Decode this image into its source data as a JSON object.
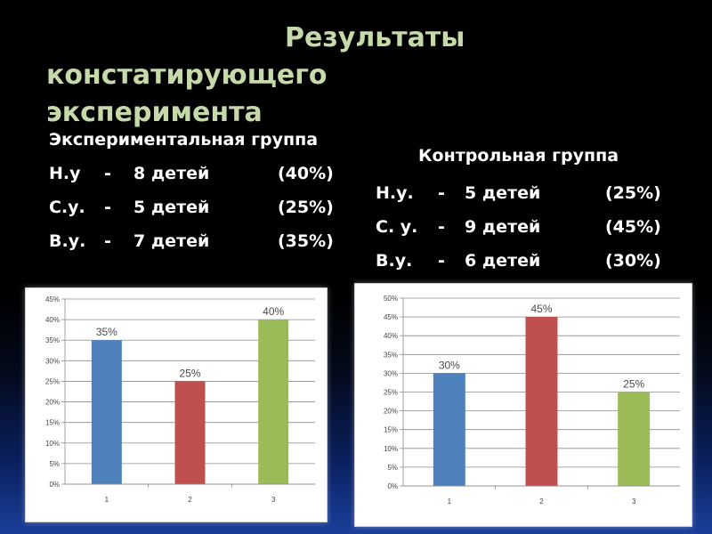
{
  "title": {
    "line1": "Результаты",
    "line2": "констатирующего",
    "line3": "эксперимента"
  },
  "experimental": {
    "name": "Экспериментальная группа",
    "rows": [
      {
        "label": "Н.у",
        "dash": "-",
        "count": "8 детей",
        "percent": "(40%)"
      },
      {
        "label": "С.у.",
        "dash": "-",
        "count": "5 детей",
        "percent": "(25%)"
      },
      {
        "label": "В.у.",
        "dash": "-",
        "count": "7  детей",
        "percent": "(35%)"
      }
    ]
  },
  "control": {
    "name": "Контрольная группа",
    "rows": [
      {
        "label": "Н.у.",
        "dash": "-",
        "count": "5 детей",
        "percent": "(25%)"
      },
      {
        "label": "С. у.",
        "dash": "-",
        "count": "9 детей",
        "percent": "(45%)"
      },
      {
        "label": "В.у.",
        "dash": "-",
        "count": "6 детей",
        "percent": "(30%)"
      }
    ]
  },
  "chart_data": [
    {
      "type": "bar",
      "categories": [
        "1",
        "2",
        "3"
      ],
      "values": [
        35,
        25,
        40
      ],
      "data_labels": [
        "35%",
        "25%",
        "40%"
      ],
      "colors": [
        "#4f81bd",
        "#c0504d",
        "#9bbb59"
      ],
      "ylim": [
        0,
        45
      ],
      "yticks": [
        0,
        5,
        10,
        15,
        20,
        25,
        30,
        35,
        40,
        45
      ],
      "ytick_labels": [
        "0%",
        "5%",
        "10%",
        "15%",
        "20%",
        "25%",
        "30%",
        "35%",
        "40%",
        "45%"
      ],
      "grid": true
    },
    {
      "type": "bar",
      "categories": [
        "1",
        "2",
        "3"
      ],
      "values": [
        30,
        45,
        25
      ],
      "data_labels": [
        "30%",
        "45%",
        "25%"
      ],
      "colors": [
        "#4f81bd",
        "#c0504d",
        "#9bbb59"
      ],
      "ylim": [
        0,
        50
      ],
      "yticks": [
        0,
        5,
        10,
        15,
        20,
        25,
        30,
        35,
        40,
        45,
        50
      ],
      "ytick_labels": [
        "0%",
        "5%",
        "10%",
        "15%",
        "20%",
        "25%",
        "30%",
        "35%",
        "40%",
        "45%",
        "50%"
      ],
      "grid": true
    }
  ]
}
